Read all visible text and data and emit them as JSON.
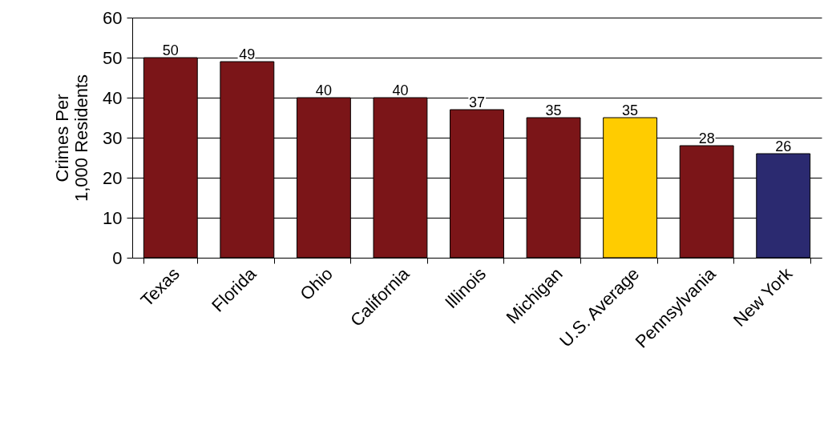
{
  "chart_data": {
    "type": "bar",
    "ylabel": "Crimes Per\n1,000 Residents",
    "categories": [
      "Texas",
      "Florida",
      "Ohio",
      "California",
      "Illinois",
      "Michigan",
      "U.S. Average",
      "Pennsylvania",
      "New York"
    ],
    "values": [
      50,
      49,
      40,
      40,
      37,
      35,
      35,
      28,
      26
    ],
    "colors": [
      "#7b1518",
      "#7b1518",
      "#7b1518",
      "#7b1518",
      "#7b1518",
      "#7b1518",
      "#ffcc00",
      "#7b1518",
      "#2b2a70"
    ],
    "ylim": [
      0,
      60
    ],
    "yticks": [
      0,
      10,
      20,
      30,
      40,
      50,
      60
    ],
    "grid": "y",
    "data_labels": true
  }
}
